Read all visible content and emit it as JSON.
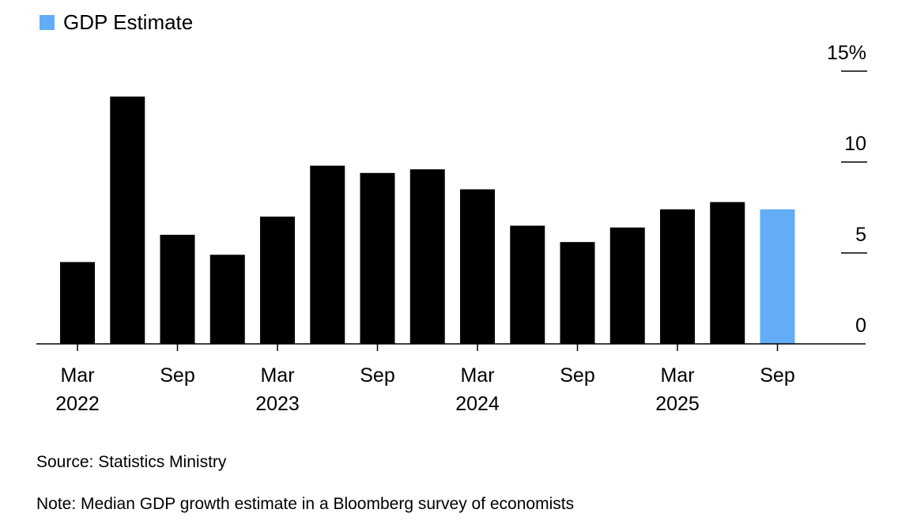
{
  "legend": {
    "items": [
      {
        "label": "GDP Estimate",
        "color": "#63adf6"
      }
    ]
  },
  "chart_data": {
    "type": "bar",
    "title": "",
    "xlabel": "",
    "ylabel": "",
    "categories": [
      "Mar 2022",
      "Jun 2022",
      "Sep 2022",
      "Dec 2022",
      "Mar 2023",
      "Jun 2023",
      "Sep 2023",
      "Dec 2023",
      "Mar 2024",
      "Jun 2024",
      "Sep 2024",
      "Dec 2024",
      "Mar 2025",
      "Jun 2025",
      "Sep 2025"
    ],
    "series": [
      {
        "values": [
          4.5,
          13.6,
          6.0,
          4.9,
          7.0,
          9.8,
          9.4,
          9.6,
          8.5,
          6.5,
          5.6,
          6.4,
          7.4,
          7.8,
          7.4
        ]
      }
    ],
    "estimate_index": 14,
    "bar_color": "#000000",
    "estimate_color": "#63adf6",
    "ylim": [
      0,
      15
    ],
    "yticks": [
      {
        "value": 15,
        "label": "15%"
      },
      {
        "value": 10,
        "label": "10"
      },
      {
        "value": 5,
        "label": "5"
      },
      {
        "value": 0,
        "label": "0"
      }
    ],
    "xticks": [
      {
        "index": 0,
        "line1": "Mar",
        "line2": "2022"
      },
      {
        "index": 2,
        "line1": "Sep",
        "line2": ""
      },
      {
        "index": 4,
        "line1": "Mar",
        "line2": "2023"
      },
      {
        "index": 6,
        "line1": "Sep",
        "line2": ""
      },
      {
        "index": 8,
        "line1": "Mar",
        "line2": "2024"
      },
      {
        "index": 10,
        "line1": "Sep",
        "line2": ""
      },
      {
        "index": 12,
        "line1": "Mar",
        "line2": "2025"
      },
      {
        "index": 14,
        "line1": "Sep",
        "line2": ""
      }
    ],
    "grid": false,
    "legend_position": "top-left"
  },
  "footer": {
    "source": "Source: Statistics Ministry",
    "note": "Note: Median GDP growth estimate in a Bloomberg survey of economists"
  }
}
